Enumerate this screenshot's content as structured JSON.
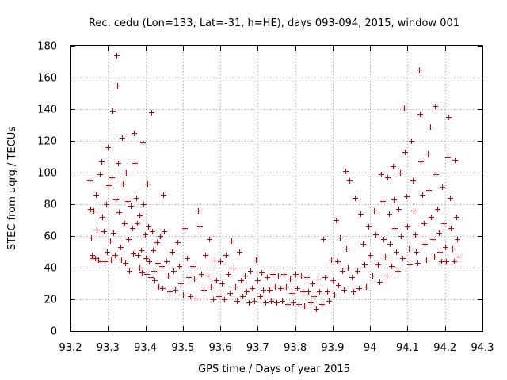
{
  "chart_data": {
    "type": "scatter",
    "title": "Rec. cedu (Lon=133, Lat=-31, h=HE), days 093-094, 2015, window 001",
    "xlabel": "GPS time / Days of year 2015",
    "ylabel": "STEC from uqrg / TECUs",
    "xlim": [
      93.2,
      94.3
    ],
    "ylim": [
      0,
      180
    ],
    "x_ticks": [
      93.2,
      93.3,
      93.4,
      93.5,
      93.6,
      93.7,
      93.8,
      93.9,
      94.0,
      94.1,
      94.2,
      94.3
    ],
    "x_tick_labels": [
      "93.2",
      "93.3",
      "93.4",
      "93.5",
      "93.6",
      "93.7",
      "93.8",
      "93.9",
      "94",
      "94.1",
      "94.2",
      "94.3"
    ],
    "y_ticks": [
      0,
      20,
      40,
      60,
      80,
      100,
      120,
      140,
      160,
      180
    ],
    "y_tick_labels": [
      "0",
      "20",
      "40",
      "60",
      "80",
      "100",
      "120",
      "140",
      "160",
      "180"
    ],
    "grid": true,
    "marker": "plus",
    "color": "#cc0000",
    "series": [
      {
        "points": [
          [
            93.25,
            95
          ],
          [
            93.252,
            77
          ],
          [
            93.255,
            59
          ],
          [
            93.258,
            48
          ],
          [
            93.26,
            46
          ],
          [
            93.265,
            46
          ],
          [
            93.262,
            76
          ],
          [
            93.268,
            86
          ],
          [
            93.27,
            64
          ],
          [
            93.275,
            45
          ],
          [
            93.28,
            44
          ],
          [
            93.278,
            99
          ],
          [
            93.282,
            107
          ],
          [
            93.285,
            72
          ],
          [
            93.288,
            63
          ],
          [
            93.29,
            44
          ],
          [
            93.295,
            80
          ],
          [
            93.298,
            50
          ],
          [
            93.3,
            116
          ],
          [
            93.302,
            92
          ],
          [
            93.305,
            57
          ],
          [
            93.307,
            45
          ],
          [
            93.31,
            97
          ],
          [
            93.312,
            139
          ],
          [
            93.315,
            62
          ],
          [
            93.318,
            48
          ],
          [
            93.32,
            83
          ],
          [
            93.322,
            174
          ],
          [
            93.324,
            155
          ],
          [
            93.326,
            106
          ],
          [
            93.33,
            75
          ],
          [
            93.333,
            53
          ],
          [
            93.335,
            45
          ],
          [
            93.338,
            122
          ],
          [
            93.34,
            93
          ],
          [
            93.343,
            68
          ],
          [
            93.346,
            43
          ],
          [
            93.348,
            100
          ],
          [
            93.352,
            82
          ],
          [
            93.355,
            58
          ],
          [
            93.357,
            38
          ],
          [
            93.36,
            79
          ],
          [
            93.365,
            65
          ],
          [
            93.368,
            49
          ],
          [
            93.37,
            125
          ],
          [
            93.372,
            106
          ],
          [
            93.375,
            84
          ],
          [
            93.378,
            68
          ],
          [
            93.38,
            48
          ],
          [
            93.383,
            40
          ],
          [
            93.385,
            73
          ],
          [
            93.388,
            51
          ],
          [
            93.39,
            37
          ],
          [
            93.393,
            119
          ],
          [
            93.395,
            80
          ],
          [
            93.398,
            61
          ],
          [
            93.4,
            46
          ],
          [
            93.403,
            36
          ],
          [
            93.405,
            93
          ],
          [
            93.408,
            66
          ],
          [
            93.41,
            44
          ],
          [
            93.413,
            34
          ],
          [
            93.415,
            138
          ],
          [
            93.418,
            63
          ],
          [
            93.42,
            51
          ],
          [
            93.423,
            38
          ],
          [
            93.425,
            32
          ],
          [
            93.43,
            56
          ],
          [
            93.433,
            43
          ],
          [
            93.435,
            28
          ],
          [
            93.44,
            60
          ],
          [
            93.443,
            41
          ],
          [
            93.445,
            27
          ],
          [
            93.448,
            86
          ],
          [
            93.45,
            63
          ],
          [
            93.455,
            44
          ],
          [
            93.46,
            35
          ],
          [
            93.465,
            25
          ],
          [
            93.47,
            50
          ],
          [
            93.475,
            38
          ],
          [
            93.48,
            26
          ],
          [
            93.485,
            56
          ],
          [
            93.49,
            41
          ],
          [
            93.495,
            30
          ],
          [
            93.5,
            23
          ],
          [
            93.505,
            65
          ],
          [
            93.51,
            46
          ],
          [
            93.515,
            34
          ],
          [
            93.52,
            22
          ],
          [
            93.525,
            41
          ],
          [
            93.53,
            33
          ],
          [
            93.535,
            21
          ],
          [
            93.54,
            76
          ],
          [
            93.545,
            66
          ],
          [
            93.55,
            36
          ],
          [
            93.555,
            26
          ],
          [
            93.56,
            48
          ],
          [
            93.565,
            35
          ],
          [
            93.57,
            58
          ],
          [
            93.575,
            28
          ],
          [
            93.58,
            20
          ],
          [
            93.585,
            45
          ],
          [
            93.59,
            32
          ],
          [
            93.595,
            22
          ],
          [
            93.6,
            44
          ],
          [
            93.605,
            30
          ],
          [
            93.61,
            20
          ],
          [
            93.615,
            48
          ],
          [
            93.62,
            36
          ],
          [
            93.625,
            24
          ],
          [
            93.63,
            57
          ],
          [
            93.635,
            40
          ],
          [
            93.64,
            28
          ],
          [
            93.645,
            19
          ],
          [
            93.65,
            50
          ],
          [
            93.655,
            32
          ],
          [
            93.66,
            22
          ],
          [
            93.665,
            35
          ],
          [
            93.67,
            25
          ],
          [
            93.675,
            18
          ],
          [
            93.68,
            38
          ],
          [
            93.685,
            27
          ],
          [
            93.69,
            19
          ],
          [
            93.695,
            45
          ],
          [
            93.7,
            32
          ],
          [
            93.705,
            22
          ],
          [
            93.71,
            37
          ],
          [
            93.715,
            26
          ],
          [
            93.72,
            18
          ],
          [
            93.725,
            34
          ],
          [
            93.73,
            26
          ],
          [
            93.735,
            19
          ],
          [
            93.74,
            36
          ],
          [
            93.745,
            28
          ],
          [
            93.75,
            18
          ],
          [
            93.755,
            35
          ],
          [
            93.76,
            27
          ],
          [
            93.765,
            19
          ],
          [
            93.77,
            36
          ],
          [
            93.775,
            28
          ],
          [
            93.78,
            17
          ],
          [
            93.785,
            33
          ],
          [
            93.79,
            24
          ],
          [
            93.795,
            18
          ],
          [
            93.8,
            36
          ],
          [
            93.805,
            27
          ],
          [
            93.81,
            17
          ],
          [
            93.815,
            35
          ],
          [
            93.82,
            25
          ],
          [
            93.825,
            16
          ],
          [
            93.83,
            34
          ],
          [
            93.835,
            25
          ],
          [
            93.84,
            18
          ],
          [
            93.845,
            30
          ],
          [
            93.85,
            22
          ],
          [
            93.855,
            14
          ],
          [
            93.86,
            33
          ],
          [
            93.865,
            25
          ],
          [
            93.87,
            17
          ],
          [
            93.875,
            58
          ],
          [
            93.88,
            34
          ],
          [
            93.885,
            25
          ],
          [
            93.89,
            19
          ],
          [
            93.895,
            45
          ],
          [
            93.9,
            32
          ],
          [
            93.905,
            23
          ],
          [
            93.908,
            70
          ],
          [
            93.912,
            44
          ],
          [
            93.915,
            29
          ],
          [
            93.92,
            59
          ],
          [
            93.925,
            38
          ],
          [
            93.93,
            26
          ],
          [
            93.933,
            101
          ],
          [
            93.937,
            52
          ],
          [
            93.94,
            40
          ],
          [
            93.945,
            95
          ],
          [
            93.95,
            34
          ],
          [
            93.955,
            25
          ],
          [
            93.96,
            84
          ],
          [
            93.965,
            38
          ],
          [
            93.97,
            27
          ],
          [
            93.975,
            74
          ],
          [
            93.98,
            55
          ],
          [
            93.985,
            42
          ],
          [
            93.99,
            28
          ],
          [
            93.995,
            66
          ],
          [
            94.0,
            48
          ],
          [
            94.005,
            35
          ],
          [
            94.01,
            76
          ],
          [
            94.015,
            61
          ],
          [
            94.02,
            42
          ],
          [
            94.025,
            31
          ],
          [
            94.03,
            99
          ],
          [
            94.033,
            82
          ],
          [
            94.036,
            58
          ],
          [
            94.04,
            47
          ],
          [
            94.043,
            35
          ],
          [
            94.046,
            97
          ],
          [
            94.05,
            74
          ],
          [
            94.053,
            55
          ],
          [
            94.056,
            41
          ],
          [
            94.06,
            104
          ],
          [
            94.063,
            83
          ],
          [
            94.066,
            65
          ],
          [
            94.07,
            50
          ],
          [
            94.073,
            38
          ],
          [
            94.076,
            77
          ],
          [
            94.08,
            100
          ],
          [
            94.083,
            60
          ],
          [
            94.086,
            46
          ],
          [
            94.09,
            141
          ],
          [
            94.093,
            113
          ],
          [
            94.096,
            85
          ],
          [
            94.1,
            66
          ],
          [
            94.103,
            52
          ],
          [
            94.106,
            42
          ],
          [
            94.11,
            120
          ],
          [
            94.113,
            95
          ],
          [
            94.116,
            76
          ],
          [
            94.12,
            61
          ],
          [
            94.123,
            50
          ],
          [
            94.126,
            43
          ],
          [
            94.13,
            165
          ],
          [
            94.133,
            137
          ],
          [
            94.136,
            107
          ],
          [
            94.14,
            86
          ],
          [
            94.143,
            68
          ],
          [
            94.146,
            55
          ],
          [
            94.15,
            45
          ],
          [
            94.153,
            112
          ],
          [
            94.156,
            89
          ],
          [
            94.16,
            129
          ],
          [
            94.163,
            72
          ],
          [
            94.166,
            58
          ],
          [
            94.17,
            47
          ],
          [
            94.173,
            142
          ],
          [
            94.176,
            99
          ],
          [
            94.18,
            77
          ],
          [
            94.183,
            62
          ],
          [
            94.186,
            50
          ],
          [
            94.19,
            44
          ],
          [
            94.193,
            91
          ],
          [
            94.196,
            68
          ],
          [
            94.2,
            53
          ],
          [
            94.203,
            44
          ],
          [
            94.206,
            110
          ],
          [
            94.21,
            135
          ],
          [
            94.213,
            84
          ],
          [
            94.216,
            65
          ],
          [
            94.22,
            52
          ],
          [
            94.223,
            44
          ],
          [
            94.226,
            108
          ],
          [
            94.23,
            72
          ],
          [
            94.233,
            58
          ],
          [
            94.236,
            47
          ]
        ]
      }
    ]
  }
}
